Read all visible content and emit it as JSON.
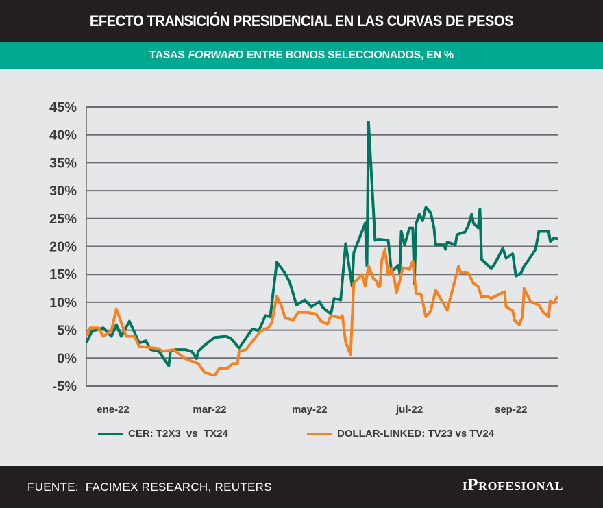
{
  "header": {
    "title": "EFECTO TRANSICIÓN PRESIDENCIAL EN LAS CURVAS DE PESOS",
    "subtitle_pre": "TASAS",
    "subtitle_em": "FORWARD",
    "subtitle_post": "ENTRE BONOS SELECCIONADOS, EN %"
  },
  "footer": {
    "source": "FUENTE:  FACIMEX RESEARCH, REUTERS",
    "logo": "iProfesional"
  },
  "colors": {
    "title_bg": "#231f20",
    "subtitle_bg": "#00a88f",
    "cer": "#007560",
    "dollar_linked": "#f58220"
  },
  "chart_data": {
    "type": "line",
    "title": "EFECTO TRANSICIÓN PRESIDENCIAL EN LAS CURVAS DE PESOS",
    "subtitle": "TASAS FORWARD ENTRE BONOS SELECCIONADOS, EN %",
    "xlabel": "",
    "ylabel": "",
    "xlim": [
      "2021-12-16",
      "2022-09-29"
    ],
    "ylim": [
      -5,
      45
    ],
    "y_ticks": [
      -5,
      0,
      5,
      10,
      15,
      20,
      25,
      30,
      35,
      40,
      45
    ],
    "y_tick_labels": [
      "-5%",
      "0%",
      "5%",
      "10%",
      "15%",
      "20%",
      "25%",
      "30%",
      "35%",
      "40%",
      "45%"
    ],
    "x_ticks": [
      "2022-01-01",
      "2022-03-01",
      "2022-05-01",
      "2022-07-01",
      "2022-09-01"
    ],
    "x_tick_labels": [
      "ene-22",
      "mar-22",
      "may-22",
      "jul-22",
      "sep-22"
    ],
    "grid": "horizontal",
    "legend": "bottom",
    "series": [
      {
        "name": "CER: T2X3  vs  TX24",
        "color": "#007560",
        "points": [
          [
            "2021-12-16",
            2.9
          ],
          [
            "2021-12-19",
            4.8
          ],
          [
            "2021-12-26",
            5.4
          ],
          [
            "2021-12-31",
            3.9
          ],
          [
            "2022-01-03",
            6.0
          ],
          [
            "2022-01-06",
            3.9
          ],
          [
            "2022-01-11",
            6.6
          ],
          [
            "2022-01-17",
            2.7
          ],
          [
            "2022-01-21",
            3.1
          ],
          [
            "2022-01-24",
            1.5
          ],
          [
            "2022-01-29",
            1.2
          ],
          [
            "2022-02-04",
            -1.4
          ],
          [
            "2022-02-05",
            1.2
          ],
          [
            "2022-02-08",
            1.5
          ],
          [
            "2022-02-14",
            1.5
          ],
          [
            "2022-02-18",
            1.2
          ],
          [
            "2022-02-21",
            -0.1
          ],
          [
            "2022-02-22",
            1.2
          ],
          [
            "2022-02-25",
            2.1
          ],
          [
            "2022-03-04",
            3.7
          ],
          [
            "2022-03-11",
            3.9
          ],
          [
            "2022-03-14",
            3.5
          ],
          [
            "2022-03-19",
            1.8
          ],
          [
            "2022-03-27",
            5.2
          ],
          [
            "2022-03-31",
            4.9
          ],
          [
            "2022-04-04",
            7.6
          ],
          [
            "2022-04-07",
            7.4
          ],
          [
            "2022-04-11",
            17.2
          ],
          [
            "2022-04-16",
            15.2
          ],
          [
            "2022-04-19",
            13.5
          ],
          [
            "2022-04-23",
            9.5
          ],
          [
            "2022-04-28",
            10.4
          ],
          [
            "2022-05-02",
            9.2
          ],
          [
            "2022-05-07",
            10.1
          ],
          [
            "2022-05-09",
            9.1
          ],
          [
            "2022-05-14",
            7.9
          ],
          [
            "2022-05-16",
            10.7
          ],
          [
            "2022-05-20",
            10.4
          ],
          [
            "2022-05-23",
            20.5
          ],
          [
            "2022-05-27",
            12.9
          ],
          [
            "2022-05-28",
            18.9
          ],
          [
            "2022-06-04",
            24.2
          ],
          [
            "2022-06-05",
            16.5
          ],
          [
            "2022-06-06",
            42.3
          ],
          [
            "2022-06-10",
            21.1
          ],
          [
            "2022-06-12",
            21.3
          ],
          [
            "2022-06-18",
            21.1
          ],
          [
            "2022-06-20",
            15.4
          ],
          [
            "2022-06-24",
            16.6
          ],
          [
            "2022-06-25",
            15.3
          ],
          [
            "2022-06-26",
            22.7
          ],
          [
            "2022-06-28",
            20.3
          ],
          [
            "2022-07-01",
            23.3
          ],
          [
            "2022-07-03",
            23.3
          ],
          [
            "2022-07-04",
            13.4
          ],
          [
            "2022-07-05",
            24.0
          ],
          [
            "2022-07-07",
            25.8
          ],
          [
            "2022-07-09",
            24.6
          ],
          [
            "2022-07-11",
            27.0
          ],
          [
            "2022-07-14",
            26.0
          ],
          [
            "2022-07-16",
            23.3
          ],
          [
            "2022-07-17",
            20.3
          ],
          [
            "2022-07-22",
            20.3
          ],
          [
            "2022-07-23",
            19.5
          ],
          [
            "2022-07-24",
            20.8
          ],
          [
            "2022-07-29",
            20.3
          ],
          [
            "2022-07-30",
            22.1
          ],
          [
            "2022-08-04",
            22.6
          ],
          [
            "2022-08-06",
            23.8
          ],
          [
            "2022-08-08",
            25.8
          ],
          [
            "2022-08-09",
            24.2
          ],
          [
            "2022-08-12",
            23.3
          ],
          [
            "2022-08-13",
            26.7
          ],
          [
            "2022-08-14",
            17.7
          ],
          [
            "2022-08-20",
            16.0
          ],
          [
            "2022-08-23",
            17.4
          ],
          [
            "2022-08-27",
            19.7
          ],
          [
            "2022-08-29",
            17.9
          ],
          [
            "2022-09-02",
            18.7
          ],
          [
            "2022-09-04",
            14.7
          ],
          [
            "2022-09-07",
            15.2
          ],
          [
            "2022-09-09",
            16.5
          ],
          [
            "2022-09-12",
            17.7
          ],
          [
            "2022-09-16",
            19.5
          ],
          [
            "2022-09-18",
            22.7
          ],
          [
            "2022-09-24",
            22.7
          ],
          [
            "2022-09-25",
            20.9
          ],
          [
            "2022-09-27",
            21.5
          ],
          [
            "2022-09-29",
            21.4
          ]
        ]
      },
      {
        "name": "DOLLAR-LINKED: TV23 vs TV24",
        "color": "#f58220",
        "points": [
          [
            "2021-12-16",
            4.2
          ],
          [
            "2021-12-18",
            5.4
          ],
          [
            "2021-12-23",
            5.4
          ],
          [
            "2021-12-26",
            3.9
          ],
          [
            "2021-12-31",
            4.9
          ],
          [
            "2022-01-03",
            8.8
          ],
          [
            "2022-01-09",
            3.9
          ],
          [
            "2022-01-14",
            3.9
          ],
          [
            "2022-01-17",
            2.1
          ],
          [
            "2022-01-29",
            1.7
          ],
          [
            "2022-01-31",
            1.2
          ],
          [
            "2022-02-07",
            1.5
          ],
          [
            "2022-02-14",
            -0.1
          ],
          [
            "2022-02-22",
            -1.0
          ],
          [
            "2022-02-26",
            -2.6
          ],
          [
            "2022-03-04",
            -3.1
          ],
          [
            "2022-03-07",
            -1.8
          ],
          [
            "2022-03-12",
            -1.8
          ],
          [
            "2022-03-15",
            -1.0
          ],
          [
            "2022-03-18",
            -1.0
          ],
          [
            "2022-03-19",
            1.2
          ],
          [
            "2022-03-23",
            1.5
          ],
          [
            "2022-04-01",
            4.8
          ],
          [
            "2022-04-06",
            5.5
          ],
          [
            "2022-04-08",
            6.4
          ],
          [
            "2022-04-11",
            11.1
          ],
          [
            "2022-04-14",
            9.2
          ],
          [
            "2022-04-16",
            7.2
          ],
          [
            "2022-04-21",
            6.8
          ],
          [
            "2022-04-24",
            8.2
          ],
          [
            "2022-04-29",
            8.2
          ],
          [
            "2022-05-05",
            7.9
          ],
          [
            "2022-05-08",
            6.6
          ],
          [
            "2022-05-12",
            6.1
          ],
          [
            "2022-05-14",
            7.6
          ],
          [
            "2022-05-20",
            7.2
          ],
          [
            "2022-05-21",
            7.6
          ],
          [
            "2022-05-23",
            2.9
          ],
          [
            "2022-05-26",
            0.6
          ],
          [
            "2022-05-28",
            13.4
          ],
          [
            "2022-06-02",
            15.0
          ],
          [
            "2022-06-04",
            12.9
          ],
          [
            "2022-06-06",
            16.5
          ],
          [
            "2022-06-09",
            14.2
          ],
          [
            "2022-06-11",
            13.8
          ],
          [
            "2022-06-12",
            12.8
          ],
          [
            "2022-06-13",
            12.9
          ],
          [
            "2022-06-14",
            17.4
          ],
          [
            "2022-06-16",
            19.5
          ],
          [
            "2022-06-18",
            14.9
          ],
          [
            "2022-06-20",
            16.0
          ],
          [
            "2022-06-22",
            13.8
          ],
          [
            "2022-06-23",
            11.7
          ],
          [
            "2022-06-25",
            13.8
          ],
          [
            "2022-06-27",
            16.2
          ],
          [
            "2022-07-01",
            15.9
          ],
          [
            "2022-07-03",
            17.4
          ],
          [
            "2022-07-05",
            11.6
          ],
          [
            "2022-07-08",
            11.5
          ],
          [
            "2022-07-11",
            7.4
          ],
          [
            "2022-07-14",
            8.5
          ],
          [
            "2022-07-17",
            12.2
          ],
          [
            "2022-07-24",
            8.6
          ],
          [
            "2022-07-31",
            16.5
          ],
          [
            "2022-08-01",
            15.4
          ],
          [
            "2022-08-06",
            15.2
          ],
          [
            "2022-08-09",
            13.4
          ],
          [
            "2022-08-12",
            12.8
          ],
          [
            "2022-08-14",
            10.9
          ],
          [
            "2022-08-17",
            11.1
          ],
          [
            "2022-08-20",
            10.7
          ],
          [
            "2022-08-28",
            11.9
          ],
          [
            "2022-08-29",
            9.2
          ],
          [
            "2022-09-02",
            8.5
          ],
          [
            "2022-09-03",
            6.8
          ],
          [
            "2022-09-06",
            6.0
          ],
          [
            "2022-09-08",
            7.4
          ],
          [
            "2022-09-09",
            12.5
          ],
          [
            "2022-09-13",
            10.1
          ],
          [
            "2022-09-18",
            9.5
          ],
          [
            "2022-09-21",
            8.1
          ],
          [
            "2022-09-24",
            7.4
          ],
          [
            "2022-09-25",
            10.3
          ],
          [
            "2022-09-27",
            9.8
          ],
          [
            "2022-09-29",
            10.9
          ]
        ]
      }
    ]
  }
}
